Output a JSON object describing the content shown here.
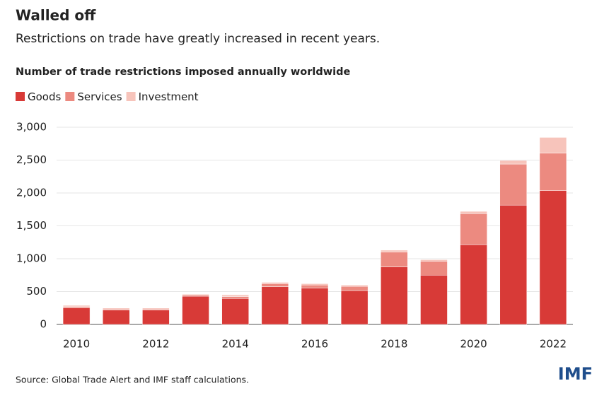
{
  "chart_data": {
    "type": "stacked_bar",
    "title": "Walled off",
    "subtitle": "Restrictions on trade have greatly increased in recent years.",
    "chart_title": "Number of trade restrictions imposed annually worldwide",
    "categories": [
      "2010",
      null,
      "2012",
      null,
      "2014",
      null,
      "2016",
      null,
      "2018",
      null,
      "2020",
      null,
      "2022"
    ],
    "series": [
      {
        "name": "Goods",
        "color": "#d83a37",
        "values": [
          250,
          220,
          220,
          430,
          395,
          575,
          555,
          515,
          875,
          750,
          1215,
          1815,
          2035
        ]
      },
      {
        "name": "Services",
        "color": "#ec8a80",
        "values": [
          20,
          15,
          15,
          20,
          30,
          45,
          45,
          65,
          225,
          210,
          470,
          625,
          570
        ]
      },
      {
        "name": "Investment",
        "color": "#f7c4bb",
        "values": [
          20,
          15,
          15,
          10,
          25,
          20,
          20,
          20,
          30,
          25,
          35,
          55,
          240
        ]
      }
    ],
    "ylim": [
      0,
      3000
    ],
    "yticks": [
      0,
      500,
      {
        "value": 1000,
        "label": "1,000"
      },
      {
        "value": 1500,
        "label": "1,500"
      },
      {
        "value": 2000,
        "label": "2,000"
      },
      {
        "value": 2500,
        "label": "2,500"
      },
      {
        "value": 3000,
        "label": "3,000"
      }
    ],
    "grid": true,
    "source": "Source: Global Trade Alert and IMF staff calculations.",
    "brand": "IMF"
  }
}
